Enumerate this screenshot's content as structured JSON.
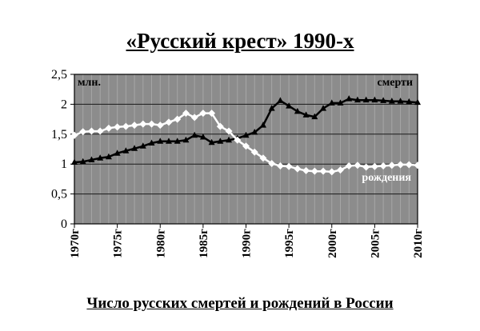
{
  "chart_data": {
    "type": "line",
    "title": "«Русский крест» 1990-х",
    "caption": "Число русских смертей и рождений в России",
    "ylabel": "млн.",
    "ylim": [
      0,
      2.5
    ],
    "yticks": [
      "0",
      "0,5",
      "1",
      "1,5",
      "2",
      "2,5"
    ],
    "ytick_values": [
      0,
      0.5,
      1,
      1.5,
      2,
      2.5
    ],
    "xlim": [
      1970,
      2010
    ],
    "xticks": [
      "1970г",
      "1975г",
      "1980г",
      "1985г",
      "1990г",
      "1995г",
      "2000г",
      "2005г",
      "2010г"
    ],
    "xtick_values": [
      1970,
      1975,
      1980,
      1985,
      1990,
      1995,
      2000,
      2005,
      2010
    ],
    "grid": true,
    "plot_background": "#8c8c8c",
    "x": [
      1970,
      1971,
      1972,
      1973,
      1974,
      1975,
      1976,
      1977,
      1978,
      1979,
      1980,
      1981,
      1982,
      1983,
      1984,
      1985,
      1986,
      1987,
      1988,
      1989,
      1990,
      1991,
      1992,
      1993,
      1994,
      1995,
      1996,
      1997,
      1998,
      1999,
      2000,
      2001,
      2002,
      2003,
      2004,
      2005,
      2006,
      2007,
      2008,
      2009,
      2010
    ],
    "series": [
      {
        "name": "смерти",
        "color": "#000000",
        "marker": "triangle",
        "values": [
          1.03,
          1.04,
          1.07,
          1.1,
          1.12,
          1.18,
          1.22,
          1.26,
          1.3,
          1.35,
          1.38,
          1.38,
          1.38,
          1.4,
          1.48,
          1.45,
          1.36,
          1.38,
          1.4,
          1.43,
          1.48,
          1.53,
          1.65,
          1.93,
          2.06,
          1.97,
          1.88,
          1.82,
          1.79,
          1.93,
          2.02,
          2.02,
          2.09,
          2.07,
          2.07,
          2.07,
          2.06,
          2.05,
          2.05,
          2.04,
          2.03
        ]
      },
      {
        "name": "рождения",
        "color": "#ffffff",
        "marker": "diamond",
        "values": [
          1.48,
          1.54,
          1.55,
          1.55,
          1.6,
          1.62,
          1.63,
          1.65,
          1.67,
          1.67,
          1.65,
          1.7,
          1.75,
          1.85,
          1.78,
          1.85,
          1.85,
          1.63,
          1.55,
          1.4,
          1.3,
          1.2,
          1.1,
          1.01,
          0.97,
          0.96,
          0.92,
          0.89,
          0.88,
          0.88,
          0.87,
          0.9,
          0.97,
          0.98,
          0.95,
          0.96,
          0.97,
          0.98,
          0.99,
          0.99,
          0.98
        ]
      }
    ]
  }
}
